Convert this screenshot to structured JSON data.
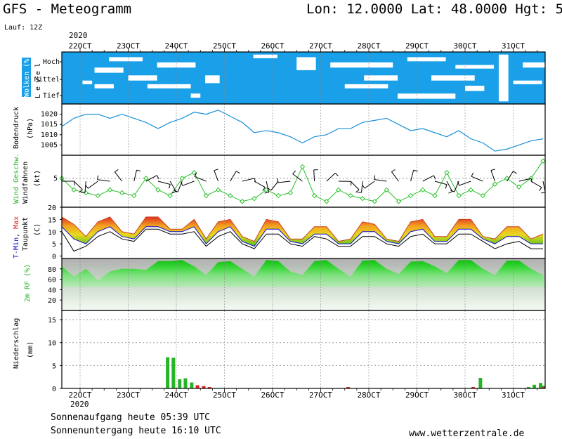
{
  "header": {
    "title": "GFS - Meteogramm",
    "location": "Lon: 12.0000 Lat: 48.0000 Hgt: 5",
    "run": "Lauf: 12Z",
    "year_top": "2020",
    "year_bottom": "2020"
  },
  "footer": {
    "sunrise": "Sonnenaufgang heute 05:39 UTC",
    "sunset": "Sonnenuntergang heute 16:10 UTC",
    "website": "www.wetterzentrale.de"
  },
  "colors": {
    "cloud": "#1aa0e8",
    "pressure": "#1a8fd8",
    "wind_speed": "#28c028",
    "precip": "#28b428",
    "precip_red": "#e02020",
    "tmax": "#e03020",
    "tmin": "#1010d0",
    "rh": "#10c810"
  },
  "chart_data": [
    {
      "type": "heatmap",
      "panel": "clouds",
      "ylabel": "Wolken (%)",
      "level_label": "Level",
      "levels": [
        "Hoch",
        "Mittel",
        "Tief"
      ],
      "x": [
        "22OCT",
        "23OCT",
        "24OCT",
        "25OCT",
        "26OCT",
        "27OCT",
        "28OCT",
        "29OCT",
        "30OCT",
        "31OCT"
      ]
    },
    {
      "type": "line",
      "panel": "pressure",
      "ylabel": "Bodendruck (hPa)",
      "x_days": [
        0,
        0.25,
        0.5,
        0.75,
        1,
        1.25,
        1.5,
        1.75,
        2,
        2.25,
        2.5,
        2.75,
        3,
        3.25,
        3.5,
        3.75,
        4,
        4.25,
        4.5,
        4.75,
        5,
        5.25,
        5.5,
        5.75,
        6,
        6.25,
        6.5,
        6.75,
        7,
        7.25,
        7.5,
        7.75,
        8,
        8.25,
        8.5,
        8.75,
        9,
        9.25,
        9.5,
        9.75,
        10
      ],
      "values": [
        1014,
        1018,
        1020,
        1020,
        1018,
        1020,
        1018,
        1016,
        1013,
        1016,
        1018,
        1021,
        1020,
        1022,
        1019,
        1016,
        1011,
        1012,
        1011,
        1009,
        1006,
        1009,
        1010,
        1013,
        1013,
        1016,
        1017,
        1018,
        1015,
        1012,
        1013,
        1011,
        1009,
        1012,
        1008,
        1006,
        1002,
        1003,
        1005,
        1007,
        1008
      ],
      "yticks": [
        1005,
        1010,
        1015,
        1020
      ],
      "ylim": [
        1000,
        1025
      ]
    },
    {
      "type": "line",
      "panel": "wind",
      "ylabel": "Windfahnen (kt)",
      "ylabel_colored": "Wind Geschw.",
      "x_days": [
        0,
        0.25,
        0.5,
        0.75,
        1,
        1.25,
        1.5,
        1.75,
        2,
        2.25,
        2.5,
        2.75,
        3,
        3.25,
        3.5,
        3.75,
        4,
        4.25,
        4.5,
        4.75,
        5,
        5.25,
        5.5,
        5.75,
        6,
        6.25,
        6.5,
        6.75,
        7,
        7.25,
        7.5,
        7.75,
        8,
        8.25,
        8.5,
        8.75,
        9,
        9.25,
        9.5,
        9.75,
        10
      ],
      "values": [
        5,
        3,
        2.5,
        2,
        3,
        2.5,
        2,
        5,
        3,
        2,
        5,
        6,
        2,
        3,
        2,
        1,
        1.5,
        3,
        2,
        2.5,
        7,
        2,
        1,
        3,
        2,
        1.5,
        1,
        3,
        1,
        2,
        3,
        2,
        6,
        2,
        3,
        2,
        4,
        5,
        3.5,
        5,
        8
      ],
      "yticks": [
        5
      ],
      "ylim": [
        0,
        9
      ]
    },
    {
      "type": "area",
      "panel": "temperature",
      "ylabel": "Taupunkt (C)",
      "ylabel_colored": "T-Min, Max",
      "x_days": [
        0,
        0.25,
        0.5,
        0.75,
        1,
        1.25,
        1.5,
        1.75,
        2,
        2.25,
        2.5,
        2.75,
        3,
        3.25,
        3.5,
        3.75,
        4,
        4.25,
        4.5,
        4.75,
        5,
        5.25,
        5.5,
        5.75,
        6,
        6.25,
        6.5,
        6.75,
        7,
        7.25,
        7.5,
        7.75,
        8,
        8.25,
        8.5,
        8.75,
        9,
        9.25,
        9.5,
        9.75,
        10
      ],
      "series": [
        {
          "name": "T-Max",
          "values": [
            16,
            13,
            8,
            14,
            16,
            10,
            9,
            16,
            16,
            11,
            11,
            15,
            7,
            14,
            15,
            8,
            6,
            15,
            14,
            7,
            7,
            12,
            12,
            6,
            7,
            14,
            13,
            7,
            6,
            14,
            15,
            8,
            8,
            15,
            15,
            8,
            7,
            12,
            12,
            7,
            9
          ]
        },
        {
          "name": "T-Min",
          "values": [
            12,
            7,
            5,
            10,
            12,
            8,
            7,
            12,
            12,
            10,
            10,
            12,
            5,
            10,
            12,
            6,
            4,
            11,
            11,
            6,
            5,
            9,
            9,
            5,
            5,
            10,
            10,
            6,
            5,
            10,
            11,
            6,
            6,
            11,
            11,
            7,
            5,
            8,
            8,
            5,
            5
          ]
        },
        {
          "name": "Taupunkt",
          "values": [
            10,
            2,
            4,
            8,
            10,
            7,
            6,
            11,
            11,
            9,
            9,
            10,
            4,
            8,
            10,
            5,
            3,
            9,
            9,
            5,
            4,
            8,
            7,
            4,
            4,
            8,
            8,
            5,
            4,
            8,
            9,
            5,
            5,
            9,
            9,
            6,
            3,
            5,
            6,
            3,
            3
          ]
        }
      ],
      "yticks": [
        0,
        5,
        10,
        15,
        20
      ],
      "ylim": [
        -1,
        20
      ]
    },
    {
      "type": "area",
      "panel": "humidity",
      "ylabel": "2m RF (%)",
      "x_days": [
        0,
        0.25,
        0.5,
        0.75,
        1,
        1.25,
        1.5,
        1.75,
        2,
        2.25,
        2.5,
        2.75,
        3,
        3.25,
        3.5,
        3.75,
        4,
        4.25,
        4.5,
        4.75,
        5,
        5.25,
        5.5,
        5.75,
        6,
        6.25,
        6.5,
        6.75,
        7,
        7.25,
        7.5,
        7.75,
        8,
        8.25,
        8.5,
        8.75,
        9,
        9.25,
        9.5,
        9.75,
        10
      ],
      "values": [
        85,
        65,
        80,
        58,
        75,
        80,
        80,
        78,
        95,
        95,
        97,
        85,
        68,
        93,
        95,
        80,
        65,
        97,
        95,
        75,
        68,
        95,
        97,
        80,
        65,
        96,
        97,
        80,
        70,
        94,
        95,
        85,
        72,
        97,
        97,
        80,
        68,
        96,
        96,
        80,
        68
      ],
      "yticks": [
        20,
        40,
        60,
        80
      ],
      "ylim": [
        0,
        100
      ]
    },
    {
      "type": "bar",
      "panel": "precipitation",
      "ylabel": "Niederschlag (mm)",
      "x_days": [
        2.25,
        2.37,
        2.5,
        2.62,
        2.75,
        2.87,
        3.0,
        3.12,
        6.0,
        8.6,
        8.75,
        9.75,
        9.87,
        10.0,
        10.12,
        10.25
      ],
      "values": [
        6.8,
        6.7,
        2.0,
        2.2,
        1.3,
        0.7,
        0.5,
        0.3,
        0.3,
        0.3,
        2.3,
        0.3,
        0.8,
        1.2,
        0.6,
        0.3
      ],
      "colors_per_bar": [
        "g",
        "g",
        "g",
        "g",
        "g",
        "r",
        "r",
        "r",
        "r",
        "r",
        "g",
        "g",
        "g",
        "g",
        "g",
        "r"
      ],
      "yticks": [
        0,
        5,
        10,
        15
      ],
      "ylim": [
        0,
        17
      ]
    }
  ],
  "x_axis": {
    "labels": [
      "22OCT",
      "23OCT",
      "24OCT",
      "25OCT",
      "26OCT",
      "27OCT",
      "28OCT",
      "29OCT",
      "30OCT",
      "31OCT"
    ]
  }
}
